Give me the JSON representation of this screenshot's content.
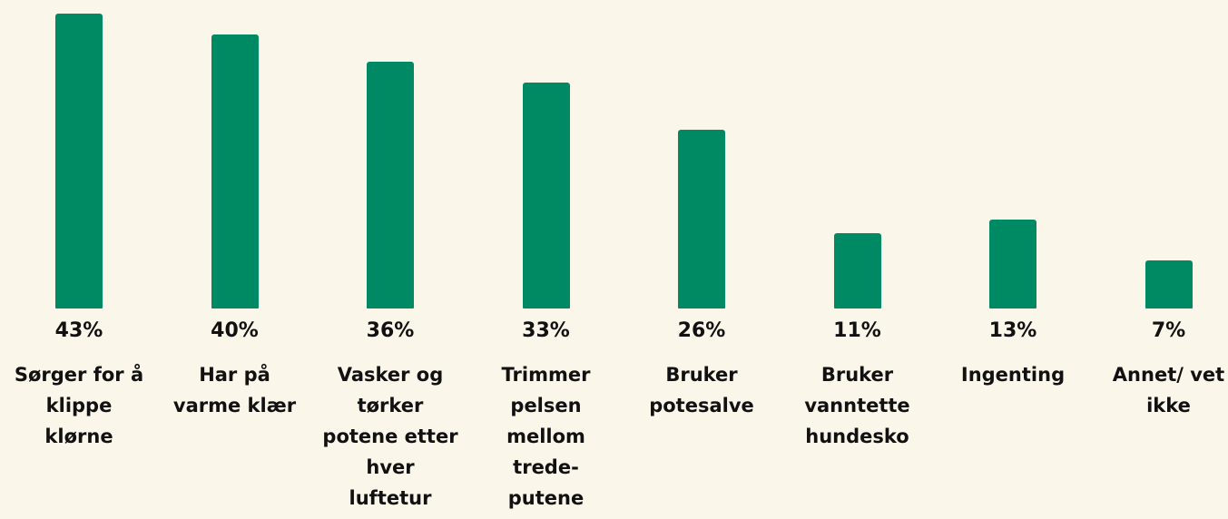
{
  "chart_data": {
    "type": "bar",
    "categories": [
      "Sørger for å klippe klørne",
      "Har på varme klær",
      "Vasker og tørker potene etter hver luftetur",
      "Trimmer pelsen mellom trede-putene",
      "Bruker potesalve",
      "Bruker vanntette hundesko",
      "Ingenting",
      "Annet/ vet ikke"
    ],
    "values": [
      43,
      40,
      36,
      33,
      26,
      11,
      13,
      7
    ],
    "value_labels": [
      "43%",
      "40%",
      "36%",
      "33%",
      "26%",
      "11%",
      "13%",
      "7%"
    ],
    "color": "#008a64"
  }
}
